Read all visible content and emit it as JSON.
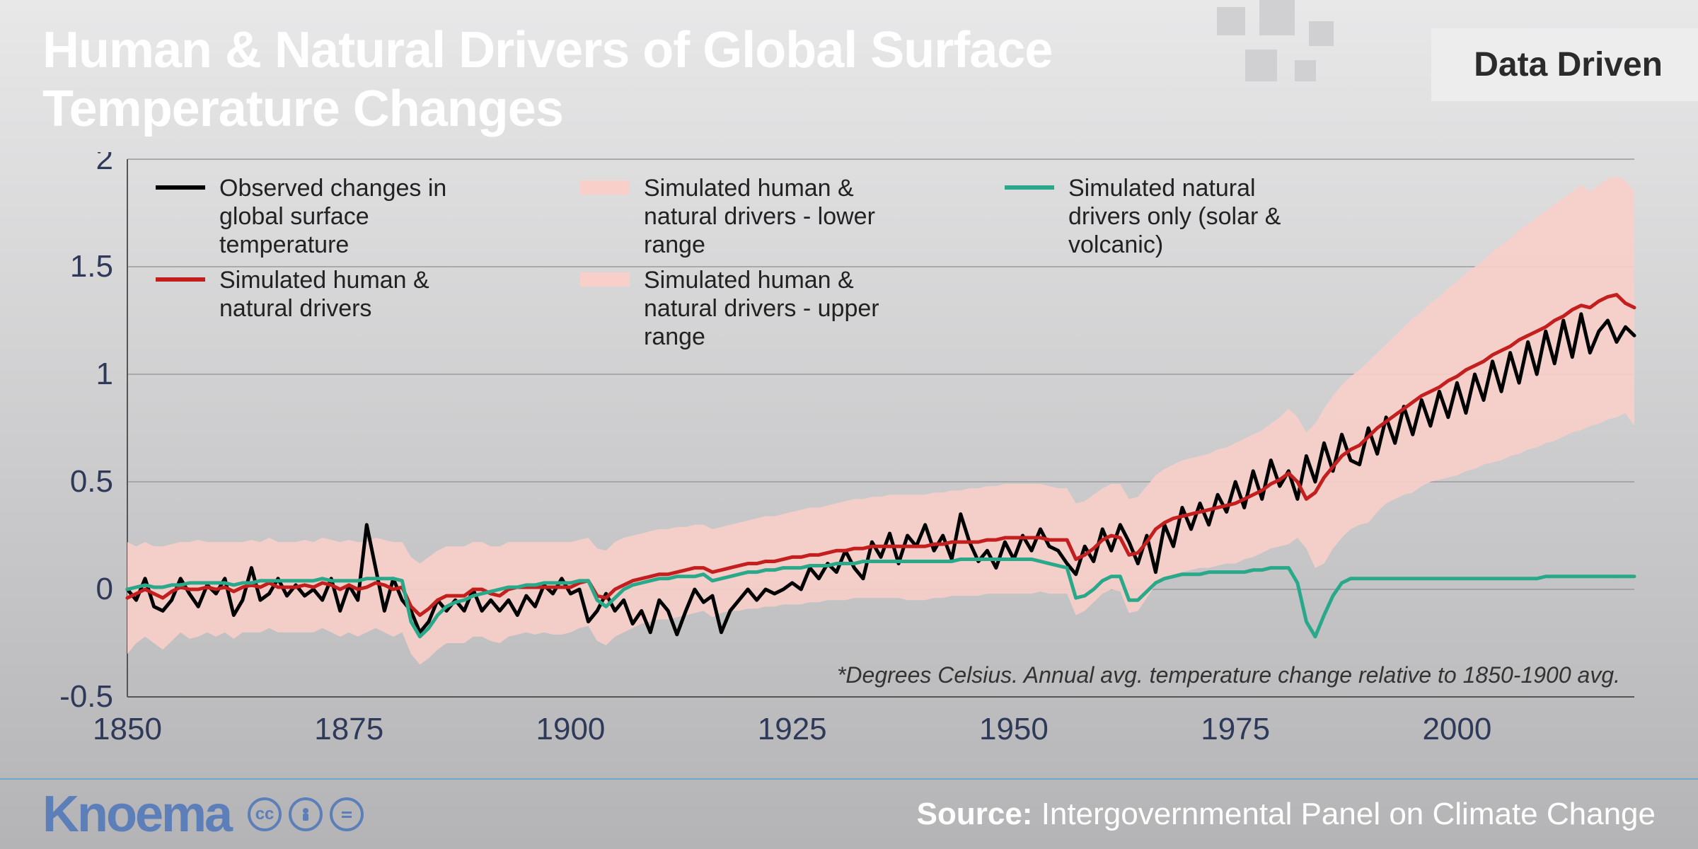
{
  "header": {
    "title": "Human & Natural Drivers of Global Surface\nTemperature Changes",
    "badge": "Data Driven"
  },
  "footer": {
    "logo_text": "Knoema",
    "source_label": "Source:",
    "source_text": "Intergovernmental Panel on Climate Change"
  },
  "chart": {
    "type": "line",
    "note": "*Degrees Celsius. Annual avg. temperature change relative to 1850-1900 avg.",
    "x_start": 1850,
    "x_end": 2020,
    "x_ticks": [
      1850,
      1875,
      1900,
      1925,
      1950,
      1975,
      2000
    ],
    "y_min": -0.5,
    "y_max": 2.0,
    "y_ticks": [
      -0.5,
      0,
      0.5,
      1,
      1.5,
      2
    ],
    "grid_color": "#9a9a9c",
    "axis_text_color": "#2f3a5a",
    "axis_fontsize": 44,
    "legend_fontsize": 34,
    "legend_color": "#222222",
    "plot_bg": "transparent",
    "band": {
      "color": "#f8cfc9",
      "lower": [
        -0.3,
        -0.25,
        -0.22,
        -0.25,
        -0.28,
        -0.24,
        -0.2,
        -0.23,
        -0.22,
        -0.2,
        -0.22,
        -0.2,
        -0.23,
        -0.2,
        -0.2,
        -0.2,
        -0.18,
        -0.2,
        -0.2,
        -0.2,
        -0.2,
        -0.2,
        -0.18,
        -0.2,
        -0.22,
        -0.2,
        -0.22,
        -0.2,
        -0.18,
        -0.2,
        -0.22,
        -0.2,
        -0.3,
        -0.35,
        -0.32,
        -0.28,
        -0.25,
        -0.25,
        -0.25,
        -0.22,
        -0.22,
        -0.24,
        -0.25,
        -0.22,
        -0.21,
        -0.2,
        -0.21,
        -0.2,
        -0.21,
        -0.21,
        -0.2,
        -0.18,
        -0.17,
        -0.24,
        -0.26,
        -0.22,
        -0.2,
        -0.18,
        -0.16,
        -0.15,
        -0.14,
        -0.14,
        -0.13,
        -0.12,
        -0.11,
        -0.1,
        -0.13,
        -0.11,
        -0.1,
        -0.1,
        -0.09,
        -0.09,
        -0.08,
        -0.08,
        -0.07,
        -0.07,
        -0.07,
        -0.06,
        -0.06,
        -0.05,
        -0.05,
        -0.05,
        -0.04,
        -0.04,
        -0.04,
        -0.04,
        -0.04,
        -0.04,
        -0.05,
        -0.05,
        -0.05,
        -0.04,
        -0.04,
        -0.03,
        -0.03,
        -0.03,
        -0.03,
        -0.02,
        -0.02,
        -0.02,
        -0.02,
        -0.02,
        -0.02,
        -0.01,
        -0.02,
        -0.02,
        -0.02,
        -0.12,
        -0.1,
        -0.06,
        -0.02,
        0.0,
        -0.01,
        -0.11,
        -0.1,
        -0.04,
        0.02,
        0.05,
        0.07,
        0.08,
        0.09,
        0.1,
        0.1,
        0.11,
        0.12,
        0.12,
        0.14,
        0.15,
        0.17,
        0.19,
        0.2,
        0.21,
        0.24,
        0.19,
        0.1,
        0.12,
        0.19,
        0.24,
        0.28,
        0.3,
        0.31,
        0.36,
        0.4,
        0.42,
        0.44,
        0.45,
        0.48,
        0.5,
        0.51,
        0.52,
        0.53,
        0.55,
        0.56,
        0.58,
        0.59,
        0.6,
        0.62,
        0.63,
        0.65,
        0.66,
        0.68,
        0.69,
        0.71,
        0.73,
        0.74,
        0.76,
        0.77,
        0.79,
        0.8,
        0.82,
        0.76
      ],
      "upper": [
        0.22,
        0.2,
        0.22,
        0.2,
        0.2,
        0.21,
        0.22,
        0.22,
        0.23,
        0.22,
        0.22,
        0.22,
        0.22,
        0.22,
        0.23,
        0.22,
        0.24,
        0.22,
        0.22,
        0.22,
        0.23,
        0.22,
        0.24,
        0.23,
        0.22,
        0.23,
        0.22,
        0.22,
        0.24,
        0.23,
        0.22,
        0.22,
        0.15,
        0.12,
        0.15,
        0.18,
        0.2,
        0.2,
        0.2,
        0.22,
        0.22,
        0.2,
        0.2,
        0.22,
        0.22,
        0.22,
        0.22,
        0.22,
        0.22,
        0.22,
        0.22,
        0.23,
        0.24,
        0.19,
        0.18,
        0.22,
        0.24,
        0.25,
        0.26,
        0.27,
        0.28,
        0.28,
        0.29,
        0.29,
        0.3,
        0.3,
        0.28,
        0.29,
        0.3,
        0.31,
        0.32,
        0.33,
        0.34,
        0.34,
        0.35,
        0.36,
        0.37,
        0.38,
        0.38,
        0.39,
        0.4,
        0.41,
        0.42,
        0.42,
        0.43,
        0.43,
        0.44,
        0.44,
        0.44,
        0.44,
        0.44,
        0.45,
        0.45,
        0.46,
        0.46,
        0.47,
        0.47,
        0.48,
        0.48,
        0.49,
        0.49,
        0.49,
        0.49,
        0.49,
        0.48,
        0.47,
        0.47,
        0.4,
        0.41,
        0.44,
        0.47,
        0.49,
        0.49,
        0.42,
        0.43,
        0.48,
        0.53,
        0.56,
        0.58,
        0.6,
        0.61,
        0.62,
        0.63,
        0.65,
        0.66,
        0.68,
        0.7,
        0.72,
        0.74,
        0.77,
        0.8,
        0.84,
        0.8,
        0.73,
        0.77,
        0.84,
        0.9,
        0.95,
        0.99,
        1.02,
        1.06,
        1.1,
        1.14,
        1.18,
        1.22,
        1.26,
        1.29,
        1.33,
        1.36,
        1.4,
        1.43,
        1.47,
        1.5,
        1.53,
        1.57,
        1.6,
        1.63,
        1.67,
        1.7,
        1.73,
        1.76,
        1.79,
        1.82,
        1.85,
        1.88,
        1.85,
        1.88,
        1.91,
        1.92,
        1.9,
        1.85
      ]
    },
    "series": [
      {
        "id": "observed",
        "label": "Observed changes in global surface temperature",
        "color": "#000000",
        "width": 5,
        "data": [
          0.0,
          -0.05,
          0.05,
          -0.08,
          -0.1,
          -0.05,
          0.05,
          -0.02,
          -0.08,
          0.02,
          -0.02,
          0.05,
          -0.12,
          -0.05,
          0.1,
          -0.05,
          -0.02,
          0.05,
          -0.03,
          0.02,
          -0.03,
          0.0,
          -0.05,
          0.05,
          -0.1,
          0.02,
          -0.05,
          0.3,
          0.1,
          -0.1,
          0.05,
          -0.05,
          -0.1,
          -0.2,
          -0.15,
          -0.05,
          -0.1,
          -0.05,
          -0.1,
          0.0,
          -0.1,
          -0.05,
          -0.1,
          -0.05,
          -0.12,
          -0.03,
          -0.08,
          0.02,
          -0.02,
          0.05,
          -0.02,
          0.0,
          -0.15,
          -0.1,
          -0.02,
          -0.1,
          -0.05,
          -0.16,
          -0.1,
          -0.2,
          -0.05,
          -0.1,
          -0.21,
          -0.1,
          0.0,
          -0.06,
          -0.03,
          -0.2,
          -0.1,
          -0.05,
          0.0,
          -0.05,
          0.0,
          -0.02,
          0.0,
          0.03,
          0.0,
          0.1,
          0.05,
          0.12,
          0.08,
          0.18,
          0.1,
          0.05,
          0.22,
          0.15,
          0.26,
          0.12,
          0.25,
          0.2,
          0.3,
          0.18,
          0.25,
          0.14,
          0.35,
          0.22,
          0.13,
          0.18,
          0.1,
          0.22,
          0.14,
          0.25,
          0.18,
          0.28,
          0.2,
          0.18,
          0.12,
          0.07,
          0.2,
          0.13,
          0.28,
          0.18,
          0.3,
          0.22,
          0.12,
          0.25,
          0.08,
          0.3,
          0.2,
          0.38,
          0.28,
          0.4,
          0.3,
          0.44,
          0.36,
          0.5,
          0.38,
          0.55,
          0.42,
          0.6,
          0.48,
          0.55,
          0.42,
          0.62,
          0.5,
          0.68,
          0.55,
          0.72,
          0.6,
          0.58,
          0.75,
          0.63,
          0.8,
          0.68,
          0.85,
          0.72,
          0.88,
          0.76,
          0.92,
          0.8,
          0.96,
          0.82,
          1.0,
          0.88,
          1.06,
          0.92,
          1.1,
          0.96,
          1.15,
          1.0,
          1.2,
          1.05,
          1.25,
          1.08,
          1.28,
          1.1,
          1.2,
          1.25,
          1.15,
          1.22,
          1.18
        ]
      },
      {
        "id": "sim_all",
        "label": "Simulated human & natural drivers",
        "color": "#c41f1f",
        "width": 5,
        "data": [
          -0.04,
          -0.02,
          0.0,
          -0.02,
          -0.04,
          -0.01,
          0.01,
          0.0,
          0.0,
          0.01,
          0.0,
          0.01,
          -0.01,
          0.01,
          0.02,
          0.01,
          0.03,
          0.01,
          0.01,
          0.01,
          0.02,
          0.01,
          0.03,
          0.02,
          0.0,
          0.02,
          0.0,
          0.01,
          0.03,
          0.02,
          0.0,
          0.01,
          -0.08,
          -0.12,
          -0.09,
          -0.05,
          -0.03,
          -0.03,
          -0.03,
          0.0,
          0.0,
          -0.02,
          -0.03,
          0.0,
          0.01,
          0.01,
          0.01,
          0.01,
          0.01,
          0.01,
          0.01,
          0.03,
          0.04,
          -0.03,
          -0.04,
          0.0,
          0.02,
          0.04,
          0.05,
          0.06,
          0.07,
          0.07,
          0.08,
          0.09,
          0.1,
          0.1,
          0.08,
          0.09,
          0.1,
          0.11,
          0.12,
          0.12,
          0.13,
          0.13,
          0.14,
          0.15,
          0.15,
          0.16,
          0.16,
          0.17,
          0.18,
          0.18,
          0.19,
          0.19,
          0.2,
          0.2,
          0.2,
          0.2,
          0.2,
          0.2,
          0.2,
          0.21,
          0.21,
          0.22,
          0.22,
          0.22,
          0.22,
          0.23,
          0.23,
          0.24,
          0.24,
          0.24,
          0.24,
          0.24,
          0.23,
          0.23,
          0.23,
          0.14,
          0.16,
          0.19,
          0.23,
          0.25,
          0.24,
          0.16,
          0.17,
          0.22,
          0.28,
          0.31,
          0.33,
          0.34,
          0.35,
          0.36,
          0.37,
          0.38,
          0.39,
          0.4,
          0.42,
          0.44,
          0.46,
          0.49,
          0.51,
          0.54,
          0.5,
          0.42,
          0.45,
          0.52,
          0.57,
          0.62,
          0.65,
          0.67,
          0.71,
          0.75,
          0.78,
          0.81,
          0.84,
          0.87,
          0.9,
          0.92,
          0.94,
          0.97,
          0.99,
          1.02,
          1.04,
          1.06,
          1.09,
          1.11,
          1.13,
          1.16,
          1.18,
          1.2,
          1.22,
          1.25,
          1.27,
          1.3,
          1.32,
          1.31,
          1.34,
          1.36,
          1.37,
          1.33,
          1.31
        ]
      },
      {
        "id": "sim_natural",
        "label": "Simulated natural drivers only (solar & volcanic)",
        "color": "#2aa88a",
        "width": 5,
        "data": [
          0.0,
          0.01,
          0.02,
          0.01,
          0.01,
          0.02,
          0.02,
          0.03,
          0.03,
          0.03,
          0.03,
          0.03,
          0.02,
          0.03,
          0.03,
          0.04,
          0.04,
          0.04,
          0.04,
          0.04,
          0.04,
          0.04,
          0.05,
          0.04,
          0.04,
          0.04,
          0.04,
          0.05,
          0.05,
          0.05,
          0.05,
          0.04,
          -0.15,
          -0.22,
          -0.18,
          -0.12,
          -0.08,
          -0.06,
          -0.05,
          -0.03,
          -0.02,
          -0.01,
          0.0,
          0.01,
          0.01,
          0.02,
          0.02,
          0.03,
          0.03,
          0.03,
          0.03,
          0.04,
          0.04,
          -0.05,
          -0.08,
          -0.04,
          0.0,
          0.02,
          0.03,
          0.04,
          0.05,
          0.05,
          0.06,
          0.06,
          0.06,
          0.07,
          0.04,
          0.05,
          0.06,
          0.07,
          0.08,
          0.08,
          0.09,
          0.09,
          0.1,
          0.1,
          0.1,
          0.11,
          0.11,
          0.11,
          0.12,
          0.12,
          0.12,
          0.13,
          0.13,
          0.13,
          0.13,
          0.13,
          0.13,
          0.13,
          0.13,
          0.13,
          0.13,
          0.13,
          0.14,
          0.14,
          0.14,
          0.14,
          0.14,
          0.14,
          0.14,
          0.14,
          0.14,
          0.13,
          0.12,
          0.11,
          0.1,
          -0.04,
          -0.03,
          0.0,
          0.04,
          0.06,
          0.06,
          -0.05,
          -0.05,
          -0.01,
          0.03,
          0.05,
          0.06,
          0.07,
          0.07,
          0.07,
          0.08,
          0.08,
          0.08,
          0.08,
          0.08,
          0.09,
          0.09,
          0.1,
          0.1,
          0.1,
          0.03,
          -0.15,
          -0.22,
          -0.12,
          -0.03,
          0.03,
          0.05,
          0.05,
          0.05,
          0.05,
          0.05,
          0.05,
          0.05,
          0.05,
          0.05,
          0.05,
          0.05,
          0.05,
          0.05,
          0.05,
          0.05,
          0.05,
          0.05,
          0.05,
          0.05,
          0.05,
          0.05,
          0.05,
          0.06,
          0.06,
          0.06,
          0.06,
          0.06,
          0.06,
          0.06,
          0.06,
          0.06,
          0.06,
          0.06
        ]
      }
    ],
    "legend_extra": [
      {
        "id": "band_lower",
        "label": "Simulated human & natural drivers - lower range",
        "color": "#f8cfc9",
        "swatch": "band"
      },
      {
        "id": "band_upper",
        "label": "Simulated human & natural drivers - upper range",
        "color": "#f8cfc9",
        "swatch": "band"
      }
    ]
  }
}
